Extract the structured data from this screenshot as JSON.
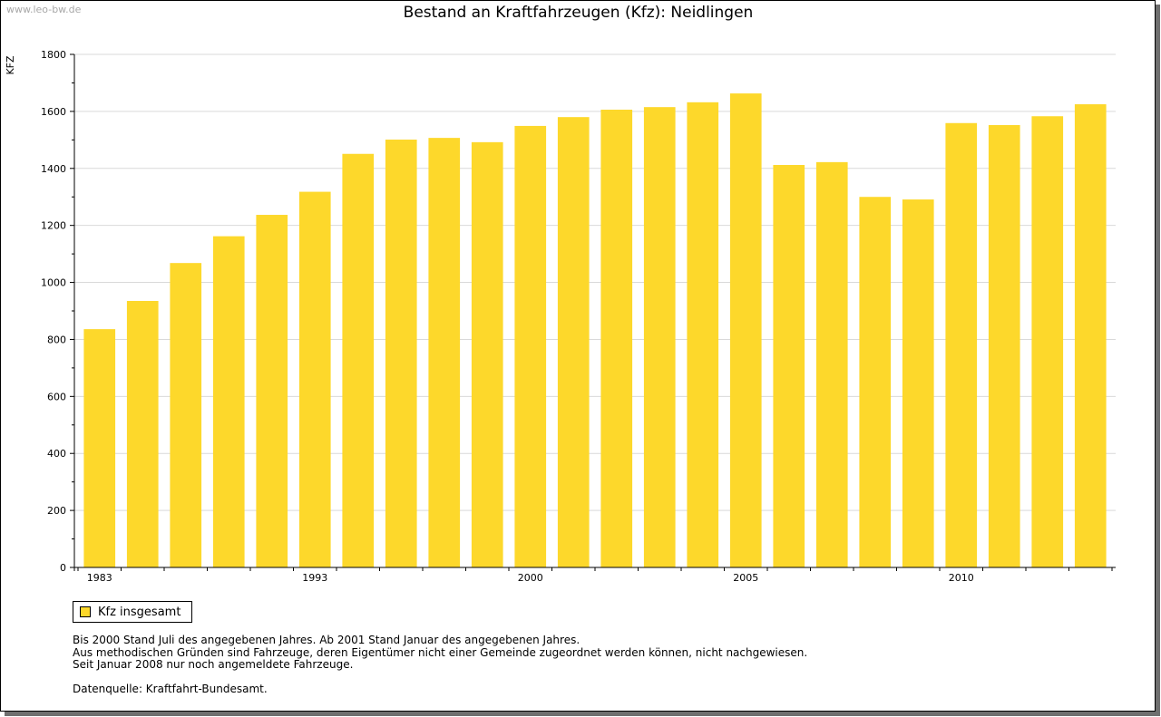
{
  "watermark": "www.leo-bw.de",
  "colors": {
    "bar": "#FDD82B",
    "grid": "#d9d9d9",
    "axis": "#000000"
  },
  "legend": {
    "label": "Kfz insgesamt"
  },
  "notes": [
    "Bis 2000 Stand Juli des angegebenen Jahres. Ab 2001 Stand Januar des angegebenen Jahres.",
    "Aus methodischen Gründen sind Fahrzeuge, deren Eigentümer nicht einer Gemeinde zugeordnet werden können, nicht nachgewiesen.",
    "Seit Januar 2008 nur noch angemeldete Fahrzeuge."
  ],
  "source": "Datenquelle: Kraftfahrt-Bundesamt.",
  "chart_data": {
    "type": "bar",
    "title": "Bestand an Kraftfahrzeugen (Kfz): Neidlingen",
    "xlabel": "",
    "ylabel": "KFZ",
    "ylim": [
      0,
      1800
    ],
    "yticks": [
      0,
      200,
      400,
      600,
      800,
      1000,
      1200,
      1400,
      1600,
      1800
    ],
    "grid": true,
    "series_name": "Kfz insgesamt",
    "categories": [
      "1983",
      "",
      "",
      "",
      "",
      "1993",
      "",
      "",
      "",
      "",
      "2000",
      "",
      "",
      "",
      "",
      "2005",
      "",
      "",
      "",
      "",
      "2010",
      "",
      "",
      ""
    ],
    "values": [
      836,
      935,
      1068,
      1162,
      1237,
      1318,
      1451,
      1501,
      1507,
      1492,
      1549,
      1580,
      1606,
      1615,
      1632,
      1663,
      1412,
      1422,
      1300,
      1291,
      1559,
      1552,
      1583,
      1625
    ]
  }
}
